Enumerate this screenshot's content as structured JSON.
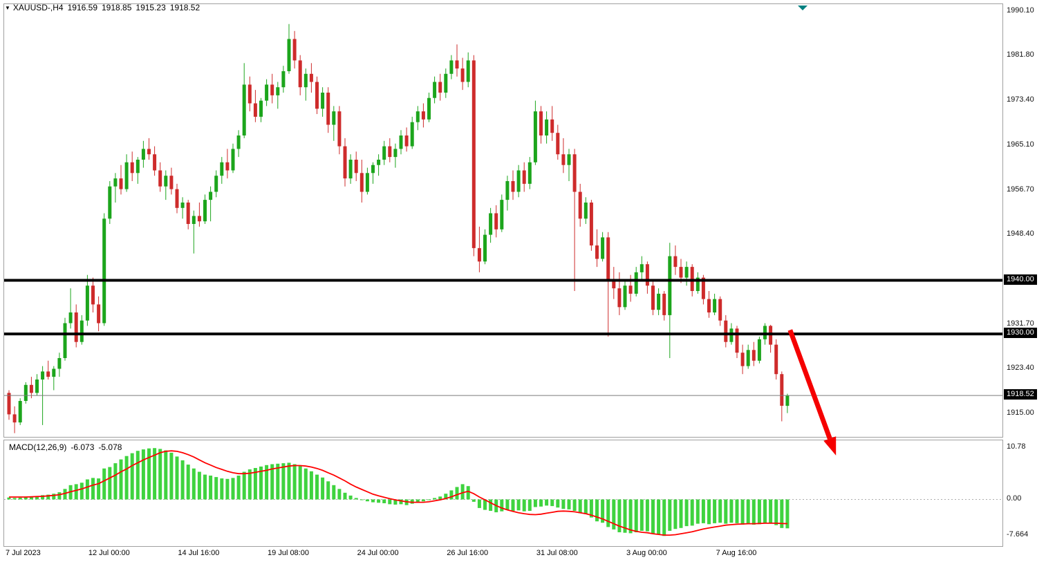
{
  "chart_title": {
    "symbol_period": "XAUUSD-,H4",
    "open": "1916.59",
    "high": "1918.85",
    "low": "1915.23",
    "close": "1918.52"
  },
  "indicator": {
    "label": "MACD(12,26,9)",
    "macd_value": "-6.073",
    "signal_value": "-5.078"
  },
  "price_axis": {
    "labels": [
      {
        "text": "1990.10",
        "value": 1990.1
      },
      {
        "text": "1981.80",
        "value": 1981.8
      },
      {
        "text": "1973.40",
        "value": 1973.4
      },
      {
        "text": "1965.10",
        "value": 1965.1
      },
      {
        "text": "1956.70",
        "value": 1956.7
      },
      {
        "text": "1948.40",
        "value": 1948.4
      },
      {
        "text": "1931.70",
        "value": 1931.7
      },
      {
        "text": "1923.40",
        "value": 1923.4
      },
      {
        "text": "1915.00",
        "value": 1915.0
      }
    ],
    "line_labels": [
      {
        "text": "1940.00",
        "value": 1940.0
      },
      {
        "text": "1930.00",
        "value": 1930.0
      }
    ],
    "bid_label": {
      "text": "1918.52",
      "value": 1918.52
    }
  },
  "macd_axis": {
    "labels": [
      {
        "text": "10.78",
        "value": 10.78
      },
      {
        "text": "0.00",
        "value": 0
      },
      {
        "text": "-7.664",
        "value": -7.664
      }
    ]
  },
  "time_axis": {
    "labels": [
      {
        "text": "7 Jul 2023",
        "bar": 0,
        "align": "left"
      },
      {
        "text": "12 Jul 00:00",
        "bar": 18
      },
      {
        "text": "14 Jul 16:00",
        "bar": 34
      },
      {
        "text": "19 Jul 08:00",
        "bar": 50
      },
      {
        "text": "24 Jul 00:00",
        "bar": 66
      },
      {
        "text": "26 Jul 16:00",
        "bar": 82
      },
      {
        "text": "31 Jul 08:00",
        "bar": 98
      },
      {
        "text": "3 Aug 00:00",
        "bar": 114
      },
      {
        "text": "7 Aug 16:00",
        "bar": 130
      }
    ]
  },
  "colors": {
    "bull_candle": "#1CA51C",
    "bear_candle": "#CE2B2B",
    "macd_histogram": "#3FD33F",
    "macd_signal": "#FF0000",
    "hline": "#000000",
    "bid_line": "#7a7a7a",
    "arrow": "#F50000",
    "shift_marker": "#008080"
  },
  "chart_data": {
    "type": "candlestick",
    "symbol": "XAUUSD-",
    "timeframe": "H4",
    "price_ylim": [
      1910.8,
      1991.5
    ],
    "horizontal_lines": [
      1940.0,
      1930.0
    ],
    "bid_price": 1918.52,
    "candles": [
      [
        1919,
        1919.5,
        1914,
        1915
      ],
      [
        1915,
        1916.5,
        1911.5,
        1913.5
      ],
      [
        1913.5,
        1918,
        1913,
        1917.5
      ],
      [
        1917.5,
        1921,
        1917,
        1920.5
      ],
      [
        1920.5,
        1922,
        1918,
        1919
      ],
      [
        1919,
        1922.5,
        1918.5,
        1921.5
      ],
      [
        1921.5,
        1924,
        1913,
        1923
      ],
      [
        1923,
        1925,
        1921.5,
        1922
      ],
      [
        1922,
        1924,
        1919.5,
        1923.5
      ],
      [
        1923.5,
        1926.5,
        1922,
        1925.5
      ],
      [
        1925.5,
        1933,
        1925,
        1932
      ],
      [
        1932,
        1938.5,
        1931,
        1934
      ],
      [
        1934,
        1935.5,
        1927.5,
        1928.5
      ],
      [
        1928.5,
        1933.5,
        1928,
        1932.5
      ],
      [
        1932.5,
        1941,
        1931.5,
        1939
      ],
      [
        1939,
        1940.5,
        1934,
        1935.5
      ],
      [
        1935.5,
        1937,
        1930.5,
        1932
      ],
      [
        1932,
        1952.5,
        1931.5,
        1951.5
      ],
      [
        1951.5,
        1958.5,
        1950.5,
        1957.5
      ],
      [
        1957.5,
        1960,
        1954.5,
        1959
      ],
      [
        1959,
        1961.5,
        1956,
        1957
      ],
      [
        1957,
        1963.5,
        1956.5,
        1962
      ],
      [
        1962,
        1964,
        1958.5,
        1960
      ],
      [
        1960,
        1963,
        1958,
        1962.5
      ],
      [
        1962.5,
        1966,
        1961,
        1964.5
      ],
      [
        1964.5,
        1966.5,
        1962.5,
        1963.5
      ],
      [
        1963.5,
        1965,
        1959.5,
        1960.5
      ],
      [
        1960.5,
        1962,
        1956.5,
        1957.5
      ],
      [
        1957.5,
        1960.5,
        1955,
        1959.5
      ],
      [
        1959.5,
        1961,
        1956,
        1957
      ],
      [
        1957,
        1958,
        1952.5,
        1953.5
      ],
      [
        1953.5,
        1955.5,
        1951.5,
        1954.5
      ],
      [
        1954.5,
        1955,
        1949.5,
        1950.5
      ],
      [
        1950.5,
        1953,
        1945,
        1952
      ],
      [
        1952,
        1954.5,
        1950,
        1951
      ],
      [
        1951,
        1956,
        1950.5,
        1955
      ],
      [
        1955,
        1957.5,
        1951,
        1956.5
      ],
      [
        1956.5,
        1960.5,
        1955.5,
        1959.5
      ],
      [
        1959.5,
        1963,
        1958,
        1962
      ],
      [
        1962,
        1964.5,
        1959,
        1960.5
      ],
      [
        1960.5,
        1965.5,
        1960,
        1964.5
      ],
      [
        1964.5,
        1968,
        1963,
        1967
      ],
      [
        1967,
        1980.5,
        1966.5,
        1976.5
      ],
      [
        1976.5,
        1978,
        1971.5,
        1973
      ],
      [
        1973,
        1975.5,
        1969.5,
        1970.5
      ],
      [
        1970.5,
        1974,
        1969.5,
        1973.5
      ],
      [
        1973.5,
        1977.5,
        1972.5,
        1976.5
      ],
      [
        1976.5,
        1978.5,
        1973,
        1974.5
      ],
      [
        1974.5,
        1977,
        1972,
        1976
      ],
      [
        1976,
        1980,
        1975,
        1979
      ],
      [
        1979,
        1987.8,
        1978.5,
        1985
      ],
      [
        1985,
        1986.5,
        1979.5,
        1981
      ],
      [
        1981,
        1982,
        1974.5,
        1976
      ],
      [
        1976,
        1979.5,
        1973.5,
        1978.5
      ],
      [
        1978.5,
        1980.5,
        1975,
        1977
      ],
      [
        1977,
        1978,
        1971,
        1972
      ],
      [
        1972,
        1976,
        1970.5,
        1975
      ],
      [
        1975,
        1976,
        1967.5,
        1969
      ],
      [
        1969,
        1972.5,
        1966,
        1971.5
      ],
      [
        1971.5,
        1972.5,
        1963.5,
        1965
      ],
      [
        1965,
        1966.5,
        1957.5,
        1959
      ],
      [
        1959,
        1963.5,
        1958,
        1962.5
      ],
      [
        1962.5,
        1964,
        1958.5,
        1960
      ],
      [
        1960,
        1962.5,
        1954.5,
        1956.5
      ],
      [
        1956.5,
        1961,
        1956,
        1960
      ],
      [
        1960,
        1962,
        1958,
        1961.5
      ],
      [
        1961.5,
        1963.5,
        1959.5,
        1962.5
      ],
      [
        1962.5,
        1966,
        1961.5,
        1965
      ],
      [
        1965,
        1966.5,
        1962,
        1963
      ],
      [
        1963,
        1965.5,
        1961,
        1964.5
      ],
      [
        1964.5,
        1968,
        1963.5,
        1967
      ],
      [
        1967,
        1968.5,
        1964,
        1965
      ],
      [
        1965,
        1970.5,
        1964.5,
        1969.5
      ],
      [
        1969.5,
        1972.5,
        1968,
        1971.5
      ],
      [
        1971.5,
        1973,
        1968.5,
        1970
      ],
      [
        1970,
        1975,
        1969.5,
        1974
      ],
      [
        1974,
        1978,
        1973,
        1977
      ],
      [
        1977,
        1978.5,
        1973.5,
        1975
      ],
      [
        1975,
        1979.5,
        1974,
        1978.5
      ],
      [
        1978.5,
        1982,
        1977.5,
        1981
      ],
      [
        1981,
        1984,
        1978,
        1979.5
      ],
      [
        1979.5,
        1981.5,
        1975.5,
        1977
      ],
      [
        1977,
        1982.5,
        1976,
        1981
      ],
      [
        1981,
        1982,
        1944.5,
        1946
      ],
      [
        1946,
        1950,
        1941.5,
        1943.5
      ],
      [
        1943.5,
        1949.5,
        1943,
        1948.5
      ],
      [
        1948.5,
        1953.5,
        1947,
        1952.5
      ],
      [
        1952.5,
        1954,
        1948,
        1949.5
      ],
      [
        1949.5,
        1956,
        1949,
        1955
      ],
      [
        1955,
        1959.5,
        1953,
        1958.5
      ],
      [
        1958.5,
        1960.5,
        1955,
        1956.5
      ],
      [
        1956.5,
        1961.5,
        1955.5,
        1960.5
      ],
      [
        1960.5,
        1962,
        1956.5,
        1958
      ],
      [
        1958,
        1963,
        1957,
        1962
      ],
      [
        1962,
        1973.5,
        1961.5,
        1971.5
      ],
      [
        1971.5,
        1972.5,
        1965.5,
        1967
      ],
      [
        1967,
        1971.5,
        1965.5,
        1970
      ],
      [
        1970,
        1972.5,
        1966,
        1967.5
      ],
      [
        1967.5,
        1969,
        1962.5,
        1963.5
      ],
      [
        1963.5,
        1966.5,
        1960,
        1961.5
      ],
      [
        1961.5,
        1964.5,
        1958.5,
        1963.5
      ],
      [
        1963.5,
        1964.5,
        1938,
        1956.5
      ],
      [
        1956.5,
        1958,
        1950,
        1951.5
      ],
      [
        1951.5,
        1955.5,
        1950.5,
        1954.5
      ],
      [
        1954.5,
        1955,
        1945.5,
        1946.5
      ],
      [
        1946.5,
        1949.5,
        1942.5,
        1944
      ],
      [
        1944,
        1949,
        1943.5,
        1948
      ],
      [
        1948,
        1949,
        1929.5,
        1940
      ],
      [
        1940,
        1942.5,
        1936.5,
        1938.5
      ],
      [
        1938.5,
        1941.5,
        1933.5,
        1935
      ],
      [
        1935,
        1940,
        1934.5,
        1939
      ],
      [
        1939,
        1941,
        1936,
        1937.5
      ],
      [
        1937.5,
        1942.5,
        1937,
        1941.5
      ],
      [
        1941.5,
        1944.5,
        1940,
        1943
      ],
      [
        1943,
        1943.5,
        1937.5,
        1939
      ],
      [
        1939,
        1940,
        1933.5,
        1934.5
      ],
      [
        1934.5,
        1938.5,
        1933.5,
        1937.5
      ],
      [
        1937.5,
        1938,
        1932.5,
        1933.5
      ],
      [
        1933.5,
        1947,
        1925.5,
        1944.5
      ],
      [
        1944.5,
        1946.5,
        1941,
        1942.5
      ],
      [
        1942.5,
        1944,
        1939.5,
        1940.5
      ],
      [
        1940.5,
        1943.5,
        1939,
        1942.5
      ],
      [
        1942.5,
        1943,
        1937,
        1938
      ],
      [
        1938,
        1941.5,
        1937.5,
        1940.5
      ],
      [
        1940.5,
        1941,
        1935.5,
        1936.5
      ],
      [
        1936.5,
        1938,
        1933,
        1934
      ],
      [
        1934,
        1937.5,
        1933.5,
        1936.5
      ],
      [
        1936.5,
        1937,
        1931.5,
        1932.5
      ],
      [
        1932.5,
        1933.5,
        1927.5,
        1928.5
      ],
      [
        1928.5,
        1932,
        1928,
        1931
      ],
      [
        1931,
        1931.5,
        1925.5,
        1926.5
      ],
      [
        1926.5,
        1928,
        1922.5,
        1924
      ],
      [
        1924,
        1928,
        1923.5,
        1927
      ],
      [
        1927,
        1928.5,
        1924,
        1925
      ],
      [
        1925,
        1929.5,
        1924.5,
        1929
      ],
      [
        1929,
        1932,
        1928,
        1931.5
      ],
      [
        1931.5,
        1931.7,
        1926.5,
        1928
      ],
      [
        1928,
        1929,
        1921.5,
        1922.5
      ],
      [
        1922.5,
        1923,
        1913.7,
        1916.6
      ],
      [
        1916.59,
        1918.85,
        1915.23,
        1918.52
      ]
    ],
    "macd": {
      "params": "12,26,9",
      "ylim": [
        -9.8,
        12.4
      ],
      "current_macd": -6.073,
      "current_signal": -5.078,
      "histogram": [
        0.4,
        0.3,
        0.35,
        0.5,
        0.6,
        0.7,
        0.9,
        1.0,
        1.2,
        1.5,
        2.2,
        3.0,
        3.2,
        3.5,
        4.2,
        4.5,
        4.4,
        6.5,
        6.8,
        7.6,
        8.4,
        9.1,
        9.7,
        10.2,
        10.5,
        10.7,
        10.78,
        10.6,
        10.3,
        9.8,
        9.0,
        8.2,
        7.3,
        6.5,
        5.8,
        5.2,
        5.0,
        4.7,
        4.4,
        4.3,
        4.5,
        5.0,
        5.8,
        6.3,
        6.6,
        6.9,
        7.2,
        7.4,
        7.5,
        7.6,
        7.7,
        7.4,
        7.0,
        6.5,
        5.9,
        5.2,
        4.6,
        3.8,
        3.0,
        2.2,
        1.4,
        0.8,
        0.3,
        -0.1,
        -0.4,
        -0.6,
        -0.7,
        -0.8,
        -1.0,
        -1.1,
        -1.0,
        -1.2,
        -0.9,
        -0.6,
        -0.4,
        -0.1,
        0.3,
        0.6,
        1.2,
        1.9,
        2.6,
        3.2,
        2.8,
        -0.5,
        -1.8,
        -2.2,
        -2.4,
        -2.7,
        -2.5,
        -2.2,
        -2.4,
        -2.3,
        -2.5,
        -2.4,
        -1.6,
        -1.5,
        -1.3,
        -1.4,
        -1.7,
        -2.0,
        -2.1,
        -2.4,
        -2.9,
        -3.1,
        -3.8,
        -4.6,
        -4.9,
        -5.8,
        -6.3,
        -6.9,
        -7.0,
        -7.1,
        -6.9,
        -6.6,
        -6.7,
        -7.2,
        -7.3,
        -7.664,
        -6.6,
        -6.2,
        -6.0,
        -5.6,
        -5.5,
        -5.1,
        -5.0,
        -5.2,
        -5.0,
        -4.9,
        -5.1,
        -4.9,
        -5.0,
        -5.3,
        -5.2,
        -5.3,
        -5.2,
        -4.9,
        -5.0,
        -5.4,
        -6.0,
        -6.073
      ],
      "signal": [
        0.5,
        0.5,
        0.5,
        0.5,
        0.55,
        0.6,
        0.65,
        0.75,
        0.85,
        1.0,
        1.25,
        1.6,
        1.9,
        2.2,
        2.6,
        3.0,
        3.3,
        3.9,
        4.5,
        5.1,
        5.8,
        6.4,
        7.1,
        7.7,
        8.3,
        8.8,
        9.3,
        9.8,
        10.1,
        10.2,
        10.1,
        9.8,
        9.4,
        8.9,
        8.3,
        7.7,
        7.2,
        6.7,
        6.3,
        5.9,
        5.6,
        5.4,
        5.4,
        5.5,
        5.7,
        5.9,
        6.1,
        6.4,
        6.6,
        6.8,
        7.0,
        7.1,
        7.1,
        7.0,
        6.8,
        6.5,
        6.1,
        5.6,
        5.1,
        4.5,
        3.9,
        3.2,
        2.6,
        2.1,
        1.6,
        1.1,
        0.75,
        0.45,
        0.15,
        -0.1,
        -0.3,
        -0.5,
        -0.6,
        -0.6,
        -0.6,
        -0.5,
        -0.3,
        -0.1,
        0.2,
        0.55,
        1.0,
        1.4,
        1.7,
        1.2,
        0.5,
        -0.1,
        -0.7,
        -1.3,
        -1.8,
        -2.2,
        -2.5,
        -2.8,
        -3.0,
        -3.15,
        -3.2,
        -3.1,
        -2.9,
        -2.7,
        -2.5,
        -2.45,
        -2.5,
        -2.6,
        -2.8,
        -3.0,
        -3.3,
        -3.7,
        -4.1,
        -4.6,
        -5.1,
        -5.6,
        -6.0,
        -6.4,
        -6.7,
        -6.9,
        -7.0,
        -7.2,
        -7.35,
        -7.5,
        -7.5,
        -7.4,
        -7.2,
        -7.0,
        -6.8,
        -6.5,
        -6.2,
        -6.0,
        -5.8,
        -5.6,
        -5.4,
        -5.3,
        -5.2,
        -5.15,
        -5.1,
        -5.1,
        -5.05,
        -5.0,
        -5.0,
        -5.0,
        -5.05,
        -5.078
      ]
    },
    "annotation_arrow": {
      "from": {
        "bar": 139.6,
        "price": 1930.6
      },
      "to": {
        "bar": 147.8,
        "price": 1907.2
      }
    }
  }
}
